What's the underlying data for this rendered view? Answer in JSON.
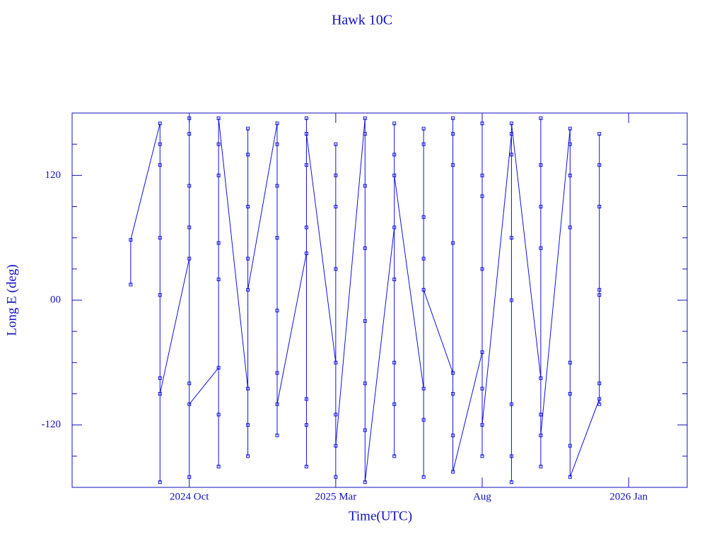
{
  "chart_data": {
    "type": "line",
    "title": "Hawk 10C",
    "x_label": "Time(UTC)",
    "y_label": "Long E (deg)",
    "x": [
      "2024-08",
      "2024-08",
      "2024-09",
      "2024-09",
      "2024-09",
      "2024-09",
      "2024-09",
      "2024-09",
      "2024-09",
      "2024-09",
      "2024-10",
      "2024-10",
      "2024-10",
      "2024-10",
      "2024-10",
      "2024-10",
      "2024-10",
      "2024-10",
      "2024-11",
      "2024-11",
      "2024-11",
      "2024-11",
      "2024-11",
      "2024-11",
      "2024-11",
      "2024-11",
      "2024-12",
      "2024-12",
      "2024-12",
      "2024-12",
      "2024-12",
      "2024-12",
      "2024-12",
      "2024-12",
      "2025-01",
      "2025-01",
      "2025-01",
      "2025-01",
      "2025-01",
      "2025-01",
      "2025-01",
      "2025-01",
      "2025-02",
      "2025-02",
      "2025-02",
      "2025-02",
      "2025-02",
      "2025-02",
      "2025-02",
      "2025-02",
      "2025-03",
      "2025-03",
      "2025-03",
      "2025-03",
      "2025-03",
      "2025-03",
      "2025-03",
      "2025-03",
      "2025-04",
      "2025-04",
      "2025-04",
      "2025-04",
      "2025-04",
      "2025-04",
      "2025-04",
      "2025-04",
      "2025-05",
      "2025-05",
      "2025-05",
      "2025-05",
      "2025-05",
      "2025-05",
      "2025-05",
      "2025-05",
      "2025-06",
      "2025-06",
      "2025-06",
      "2025-06",
      "2025-06",
      "2025-06",
      "2025-06",
      "2025-06",
      "2025-07",
      "2025-07",
      "2025-07",
      "2025-07",
      "2025-07",
      "2025-07",
      "2025-07",
      "2025-07",
      "2025-08",
      "2025-08",
      "2025-08",
      "2025-08",
      "2025-08",
      "2025-08",
      "2025-08",
      "2025-08",
      "2025-09",
      "2025-09",
      "2025-09",
      "2025-09",
      "2025-09",
      "2025-09",
      "2025-09",
      "2025-09",
      "2025-10",
      "2025-10",
      "2025-10",
      "2025-10",
      "2025-10",
      "2025-10",
      "2025-10",
      "2025-10",
      "2025-11",
      "2025-11",
      "2025-11",
      "2025-11",
      "2025-11",
      "2025-11",
      "2025-11",
      "2025-11",
      "2025-12",
      "2025-12",
      "2025-12",
      "2025-12",
      "2025-12",
      "2025-12",
      "2025-12",
      "2025-12"
    ],
    "series": [
      {
        "name": "Long E",
        "color": "#1010e0",
        "values": [
          15,
          58,
          170,
          5,
          130,
          -75,
          60,
          -175,
          150,
          -90,
          40,
          175,
          -80,
          110,
          -170,
          70,
          160,
          -100,
          -65,
          150,
          20,
          -160,
          120,
          -110,
          55,
          175,
          -85,
          165,
          40,
          -120,
          140,
          -150,
          90,
          10,
          170,
          -70,
          60,
          -130,
          150,
          -10,
          110,
          -100,
          45,
          175,
          -95,
          130,
          -160,
          70,
          -120,
          160,
          -60,
          120,
          -170,
          30,
          150,
          -110,
          90,
          -140,
          175,
          -80,
          50,
          -125,
          160,
          -20,
          110,
          -175,
          70,
          -100,
          170,
          -60,
          140,
          -150,
          20,
          120,
          -85,
          165,
          40,
          -115,
          150,
          -170,
          80,
          10,
          -70,
          160,
          -130,
          55,
          175,
          -90,
          130,
          -165,
          -50,
          120,
          30,
          -150,
          170,
          -85,
          100,
          -120,
          160,
          -175,
          60,
          -100,
          140,
          0,
          -150,
          170,
          -75,
          130,
          -160,
          50,
          175,
          -110,
          90,
          -130,
          165,
          -90,
          70,
          -140,
          150,
          -60,
          120,
          -170,
          -95,
          160,
          -80,
          130,
          10,
          -100,
          90,
          5
        ]
      }
    ],
    "xlim": [
      "2024-06",
      "2026-03"
    ],
    "xticks": [
      {
        "value": "2024-10",
        "label": "2024 Oct"
      },
      {
        "value": "2025-03",
        "label": "2025 Mar"
      },
      {
        "value": "2025-08",
        "label": "Aug"
      },
      {
        "value": "2026-01",
        "label": "2026 Jan"
      }
    ],
    "ylim": [
      -180,
      180
    ],
    "yticks": [
      -120,
      {
        "value": 0,
        "label": "00"
      },
      120
    ],
    "y_minor_ticks": [
      -150,
      -90,
      -60,
      -30,
      30,
      60,
      90,
      150
    ]
  }
}
